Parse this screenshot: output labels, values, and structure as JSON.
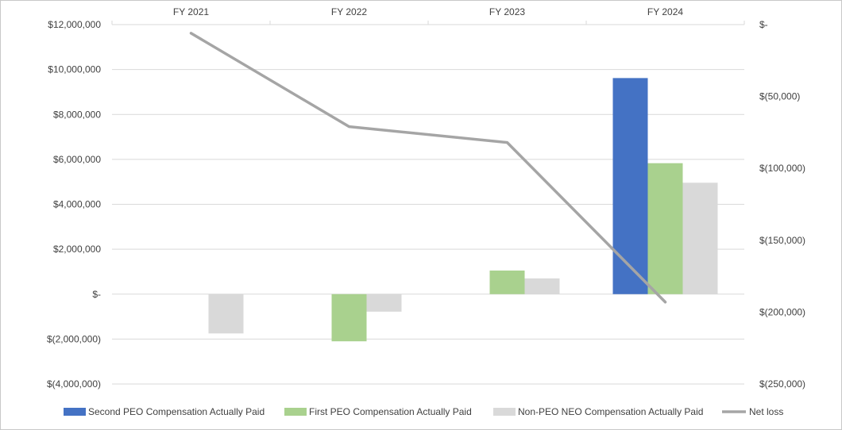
{
  "chart_data": {
    "type": "bar",
    "categories": [
      "FY 2021",
      "FY 2022",
      "FY 2023",
      "FY 2024"
    ],
    "series": [
      {
        "name": "Second PEO Compensation Actually Paid",
        "type": "bar",
        "axis": "left",
        "color": "#4472c4",
        "values": [
          null,
          null,
          null,
          9620000
        ]
      },
      {
        "name": "First PEO Compensation Actually Paid",
        "type": "bar",
        "axis": "left",
        "color": "#a9d18e",
        "values": [
          null,
          -2100000,
          1050000,
          5830000
        ]
      },
      {
        "name": "Non-PEO NEO Compensation Actually Paid",
        "type": "bar",
        "axis": "left",
        "color": "#d9d9d9",
        "values": [
          -1750000,
          -780000,
          700000,
          4960000
        ]
      },
      {
        "name": "Net loss",
        "type": "line",
        "axis": "right",
        "color": "#a5a5a5",
        "values": [
          -6000,
          -71000,
          -82000,
          -193000
        ]
      }
    ],
    "y_left": {
      "ylim": [
        -4000000,
        12000000
      ],
      "ticks": [
        12000000,
        10000000,
        8000000,
        6000000,
        4000000,
        2000000,
        0,
        -2000000,
        -4000000
      ],
      "tick_labels": [
        "$12,000,000",
        "$10,000,000",
        "$8,000,000",
        "$6,000,000",
        "$4,000,000",
        "$2,000,000",
        "$-",
        "$(2,000,000)",
        "$(4,000,000)"
      ]
    },
    "y_right": {
      "ylim": [
        -250000,
        0
      ],
      "ticks": [
        0,
        -50000,
        -100000,
        -150000,
        -200000,
        -250000
      ],
      "tick_labels": [
        "$-",
        "$(50,000)",
        "$(100,000)",
        "$(150,000)",
        "$(200,000)",
        "$(250,000)"
      ]
    },
    "x_axis_position": "top",
    "grid": true,
    "legend": "bottom"
  }
}
